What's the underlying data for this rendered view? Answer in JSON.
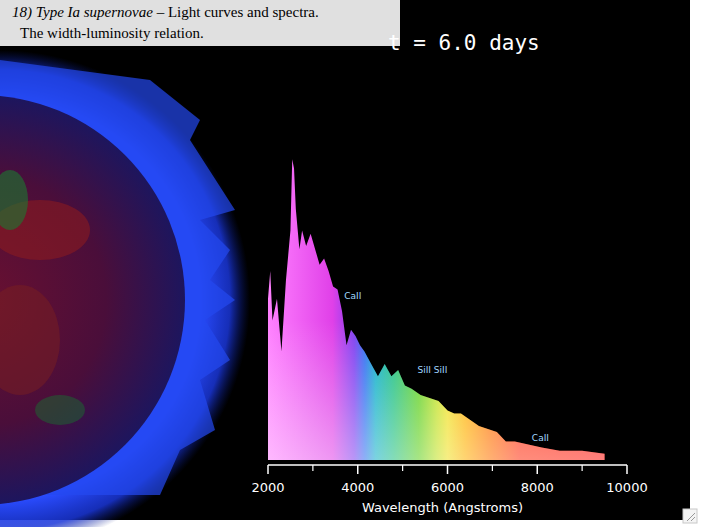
{
  "chart_data": {
    "type": "area",
    "title": "18) Type Ia supernovae",
    "title_rest": "– Light curves and spectra.",
    "subtitle": "The width-luminosity  relation.",
    "time_label": "t = 6.0 days",
    "x_label": "Wavelength (Angstroms)",
    "x": [
      2000,
      2050,
      2100,
      2200,
      2300,
      2400,
      2500,
      2540,
      2580,
      2620,
      2700,
      2760,
      2850,
      2950,
      3050,
      3150,
      3250,
      3350,
      3450,
      3550,
      3650,
      3750,
      3850,
      3950,
      4050,
      4150,
      4300,
      4450,
      4600,
      4750,
      4900,
      5050,
      5200,
      5400,
      5600,
      5800,
      6000,
      6150,
      6300,
      6500,
      6700,
      6900,
      7100,
      7300,
      7500,
      7800,
      8100,
      8500,
      9000,
      9500
    ],
    "values": [
      52,
      61,
      45,
      52,
      35,
      58,
      74,
      97,
      94,
      81,
      68,
      74,
      69,
      73,
      68,
      63,
      65,
      61,
      56,
      55,
      48,
      37,
      42,
      40,
      37,
      35,
      31,
      27,
      31,
      27,
      29,
      24,
      23,
      21,
      20,
      19,
      16,
      15,
      15,
      13,
      11,
      10,
      9,
      6,
      6,
      5,
      4,
      3,
      3,
      2
    ],
    "xlim": [
      2000,
      10000
    ],
    "ylim": [
      0,
      100
    ],
    "xticks": [
      2000,
      4000,
      6000,
      8000,
      10000
    ],
    "tick_labels": "x",
    "annotations": [
      {
        "text": "CaII",
        "x": 3700,
        "y": 52
      },
      {
        "text": "SiII  SiII",
        "x": 5330,
        "y": 28
      },
      {
        "text": "CaII",
        "x": 7880,
        "y": 6
      }
    ]
  }
}
